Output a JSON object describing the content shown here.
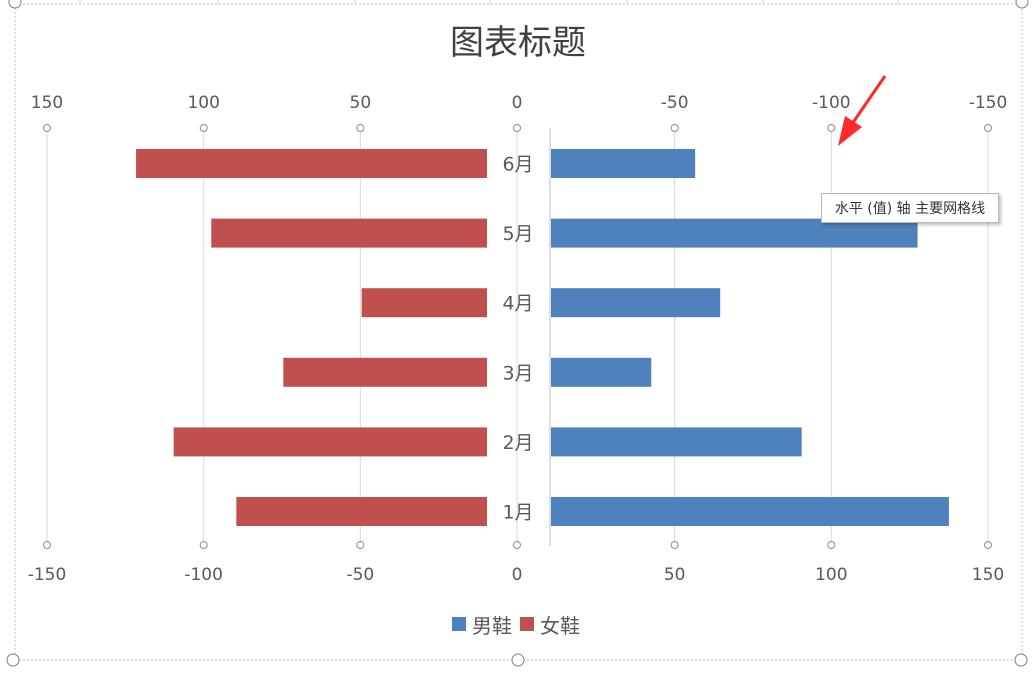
{
  "chart_data": {
    "type": "bar",
    "orientation": "horizontal",
    "title": "图表标题",
    "categories": [
      "1月",
      "2月",
      "3月",
      "4月",
      "5月",
      "6月"
    ],
    "series": [
      {
        "name": "女鞋",
        "values": [
          80,
          100,
          65,
          40,
          88,
          112
        ],
        "color": "#C0504D"
      },
      {
        "name": "男鞋",
        "values": [
          127,
          80,
          32,
          54,
          117,
          46
        ],
        "color": "#4F81BD"
      }
    ],
    "left_axis": {
      "top_ticks": [
        "150",
        "100",
        "50",
        "0"
      ],
      "bottom_ticks": [
        "-150",
        "-100",
        "-50",
        "0"
      ],
      "range": [
        -150,
        0
      ]
    },
    "right_axis": {
      "top_ticks": [
        "-50",
        "-100",
        "-150"
      ],
      "bottom_ticks": [
        "50",
        "100",
        "150"
      ],
      "range": [
        0,
        150
      ]
    },
    "grid": true,
    "legend_position": "bottom"
  },
  "tooltip_text": "水平 (值) 轴 主要网格线",
  "annotation": "red-arrow"
}
